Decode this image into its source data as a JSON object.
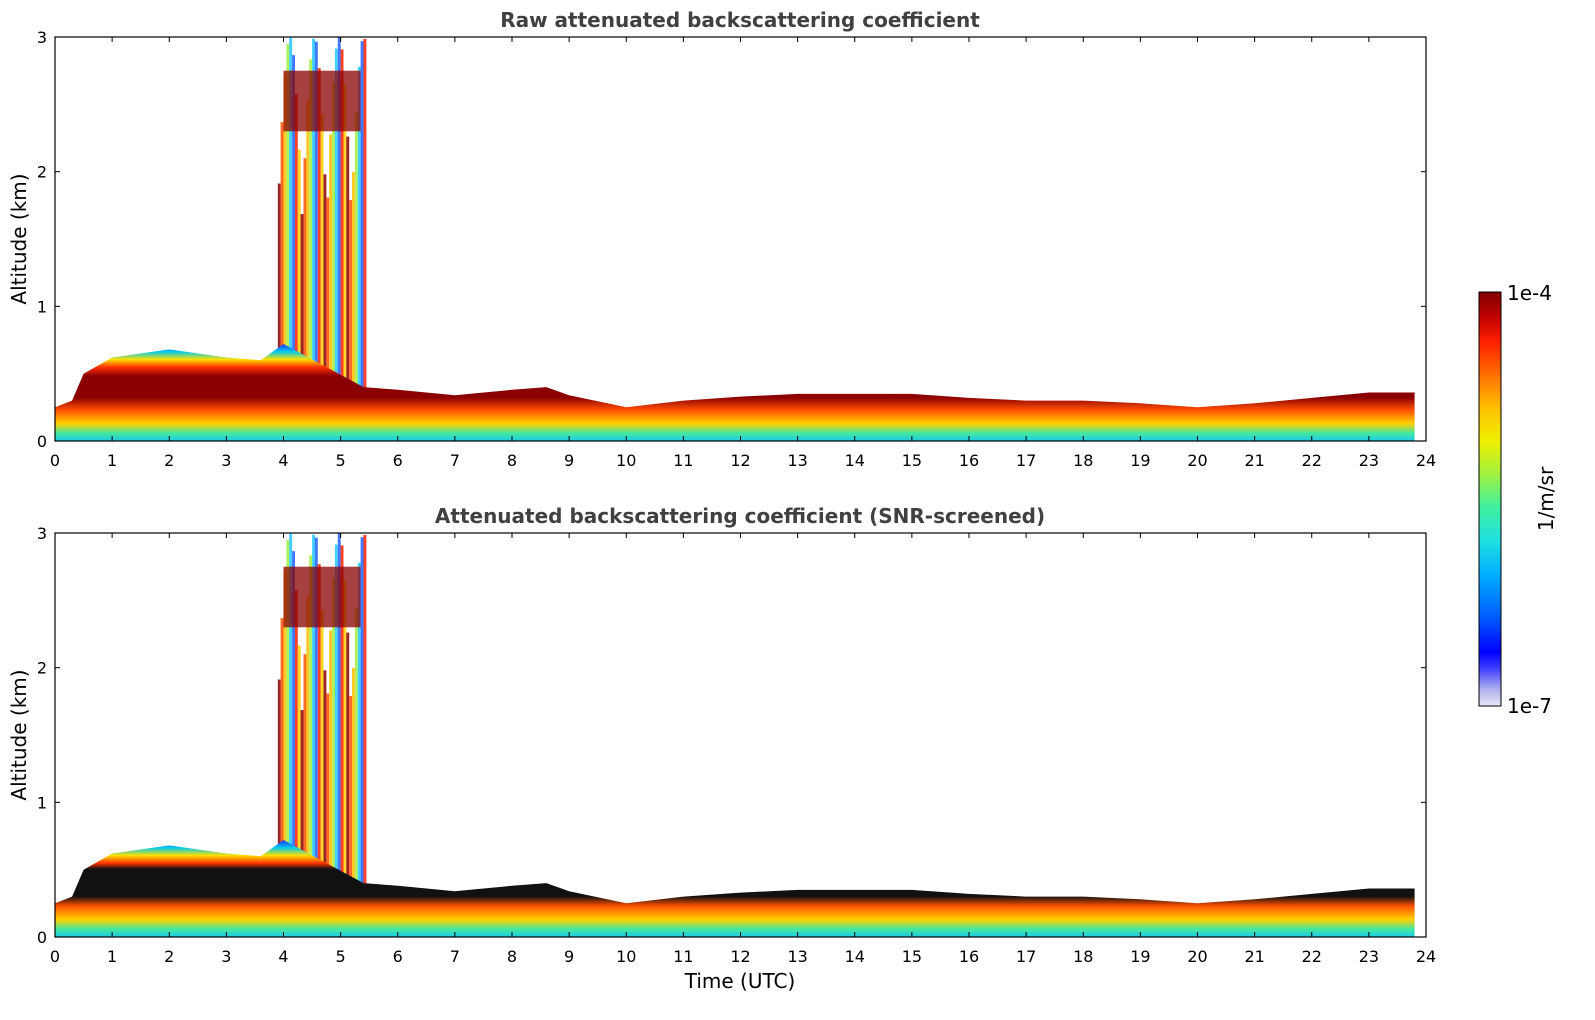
{
  "chart_data": [
    {
      "type": "heatmap",
      "title": "Raw attenuated backscattering coefficient",
      "xlabel": "",
      "ylabel": "Altitude (km)",
      "xlim": [
        0,
        24
      ],
      "ylim": [
        0,
        3
      ],
      "xticks": [
        "0",
        "1",
        "2",
        "3",
        "4",
        "5",
        "6",
        "7",
        "8",
        "9",
        "10",
        "11",
        "12",
        "13",
        "14",
        "15",
        "16",
        "17",
        "18",
        "19",
        "20",
        "21",
        "22",
        "23",
        "24"
      ],
      "yticks": [
        "0",
        "1",
        "2",
        "3"
      ],
      "layer_top_km": [
        [
          0,
          0.25
        ],
        [
          0.3,
          0.3
        ],
        [
          0.5,
          0.5
        ],
        [
          1,
          0.62
        ],
        [
          2,
          0.68
        ],
        [
          3,
          0.62
        ],
        [
          3.6,
          0.6
        ],
        [
          4,
          0.72
        ],
        [
          5.4,
          0.4
        ],
        [
          6,
          0.38
        ],
        [
          7,
          0.34
        ],
        [
          8,
          0.38
        ],
        [
          8.6,
          0.4
        ],
        [
          9,
          0.34
        ],
        [
          10,
          0.25
        ],
        [
          11,
          0.3
        ],
        [
          12,
          0.33
        ],
        [
          13,
          0.35
        ],
        [
          14,
          0.35
        ],
        [
          15,
          0.35
        ],
        [
          16,
          0.32
        ],
        [
          17,
          0.3
        ],
        [
          18,
          0.3
        ],
        [
          19,
          0.28
        ],
        [
          20,
          0.25
        ],
        [
          21,
          0.28
        ],
        [
          22,
          0.32
        ],
        [
          23,
          0.36
        ],
        [
          23.8,
          0.36
        ]
      ],
      "plume_time_range": [
        3.9,
        5.4
      ],
      "plume_top_km": 3.0
    },
    {
      "type": "heatmap",
      "title": "Attenuated backscattering coefficient (SNR-screened)",
      "xlabel": "Time (UTC)",
      "ylabel": "Altitude (km)",
      "xlim": [
        0,
        24
      ],
      "ylim": [
        0,
        3
      ],
      "xticks": [
        "0",
        "1",
        "2",
        "3",
        "4",
        "5",
        "6",
        "7",
        "8",
        "9",
        "10",
        "11",
        "12",
        "13",
        "14",
        "15",
        "16",
        "17",
        "18",
        "19",
        "20",
        "21",
        "22",
        "23",
        "24"
      ],
      "yticks": [
        "0",
        "1",
        "2",
        "3"
      ],
      "layer_top_km": [
        [
          0,
          0.25
        ],
        [
          0.3,
          0.3
        ],
        [
          0.5,
          0.5
        ],
        [
          1,
          0.62
        ],
        [
          2,
          0.68
        ],
        [
          3,
          0.62
        ],
        [
          3.6,
          0.6
        ],
        [
          4,
          0.72
        ],
        [
          5.4,
          0.4
        ],
        [
          6,
          0.38
        ],
        [
          7,
          0.34
        ],
        [
          8,
          0.38
        ],
        [
          8.6,
          0.4
        ],
        [
          9,
          0.34
        ],
        [
          10,
          0.25
        ],
        [
          11,
          0.3
        ],
        [
          12,
          0.33
        ],
        [
          13,
          0.35
        ],
        [
          14,
          0.35
        ],
        [
          15,
          0.35
        ],
        [
          16,
          0.32
        ],
        [
          17,
          0.3
        ],
        [
          18,
          0.3
        ],
        [
          19,
          0.28
        ],
        [
          20,
          0.25
        ],
        [
          21,
          0.28
        ],
        [
          22,
          0.32
        ],
        [
          23,
          0.36
        ],
        [
          23.8,
          0.36
        ]
      ],
      "plume_time_range": [
        3.9,
        5.4
      ],
      "plume_top_km": 3.0
    }
  ],
  "colorbar": {
    "max_label": "1e-4",
    "min_label": "1e-7",
    "unit_label": "1/m/sr",
    "colors": [
      "#e8e8f8",
      "#b0b0f0",
      "#4040ff",
      "#0000ff",
      "#0060ff",
      "#00b0ff",
      "#20e0e0",
      "#40f0a0",
      "#a0f040",
      "#f0f000",
      "#ffc000",
      "#ff7000",
      "#ff2000",
      "#c00000",
      "#800000"
    ]
  }
}
